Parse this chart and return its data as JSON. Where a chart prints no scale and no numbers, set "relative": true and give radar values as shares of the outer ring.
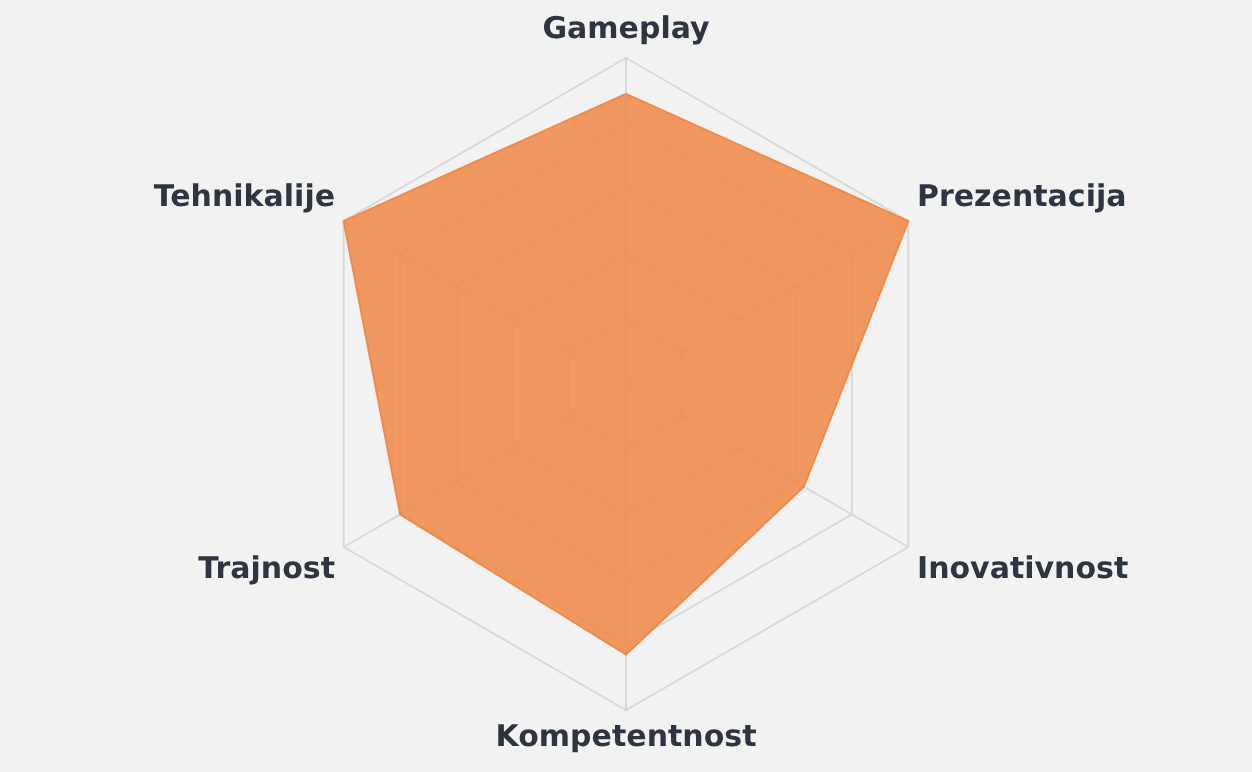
{
  "chart_data": {
    "type": "radar",
    "relative": true,
    "grid": true,
    "legend": false,
    "marker": "none",
    "categories": [
      "Gameplay",
      "Prezentacija",
      "Inovativnost",
      "Kompetentnost",
      "Trajnost",
      "Tehnikalije"
    ],
    "series": [
      {
        "color": "#f08a4b",
        "values": [
          0.89,
          1.0,
          0.63,
          0.83,
          0.8,
          1.0
        ]
      }
    ]
  }
}
